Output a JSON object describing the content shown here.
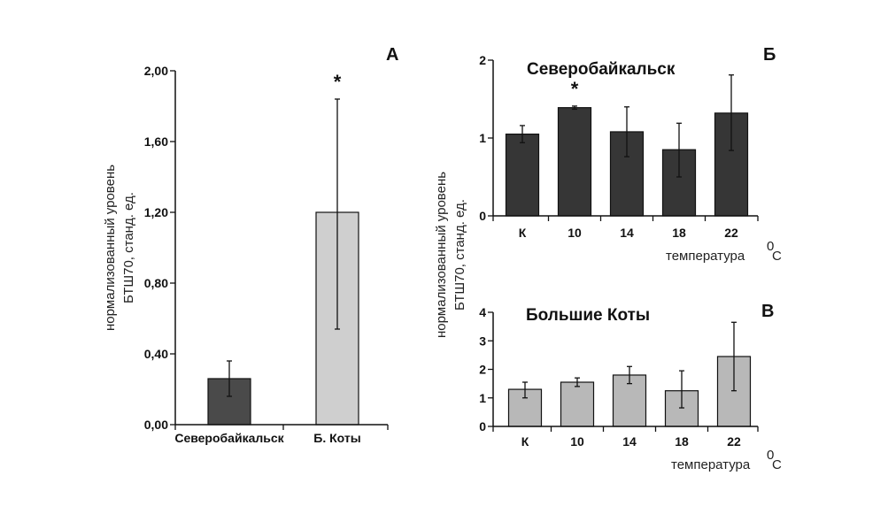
{
  "chart_data": [
    {
      "id": "A",
      "type": "bar",
      "panel_label": "А",
      "ylabel_line1": "нормализованный уровень",
      "ylabel_line2": "БТШ70, станд. ед.",
      "categories": [
        "Северобайкальск",
        "Б. Коты"
      ],
      "values": [
        0.26,
        1.2
      ],
      "errors_low": [
        0.16,
        0.54
      ],
      "errors_high": [
        0.36,
        1.84
      ],
      "significance": [
        "",
        "*"
      ],
      "colors": [
        "#4a4a4a",
        "#cfcfcf"
      ],
      "ylim": [
        0,
        2
      ],
      "yticks": [
        0,
        0.4,
        0.8,
        1.2,
        1.6,
        2.0
      ],
      "yticklabels": [
        "0,00",
        "0,40",
        "0,80",
        "1,20",
        "1,60",
        "2,00"
      ]
    },
    {
      "id": "B",
      "type": "bar",
      "panel_label": "Б",
      "title": "Северобайкальск",
      "xlabel": "температура",
      "xunit": "C",
      "xunit_sup": "0",
      "categories": [
        "К",
        "10",
        "14",
        "18",
        "22"
      ],
      "values": [
        1.05,
        1.39,
        1.08,
        0.85,
        1.32
      ],
      "errors_low": [
        0.94,
        1.37,
        0.76,
        0.5,
        0.84
      ],
      "errors_high": [
        1.16,
        1.41,
        1.4,
        1.19,
        1.81
      ],
      "significance": [
        "",
        "*",
        "",
        "",
        ""
      ],
      "color": "#363636",
      "ylim": [
        0,
        2
      ],
      "yticks": [
        0,
        1,
        2
      ],
      "yticklabels": [
        "0",
        "1",
        "2"
      ]
    },
    {
      "id": "C",
      "type": "bar",
      "panel_label": "В",
      "title": "Большие Коты",
      "xlabel": "температура",
      "xunit": "C",
      "xunit_sup": "0",
      "categories": [
        "К",
        "10",
        "14",
        "18",
        "22"
      ],
      "values": [
        1.3,
        1.55,
        1.8,
        1.25,
        2.45
      ],
      "errors_low": [
        1.0,
        1.4,
        1.5,
        0.65,
        1.25
      ],
      "errors_high": [
        1.55,
        1.7,
        2.1,
        1.95,
        3.65
      ],
      "significance": [
        "",
        "",
        "",
        "",
        ""
      ],
      "color": "#b8b8b8",
      "ylim": [
        0,
        4
      ],
      "yticks": [
        0,
        1,
        2,
        3,
        4
      ],
      "yticklabels": [
        "0",
        "1",
        "2",
        "3",
        "4"
      ]
    }
  ],
  "shared_ylabel_line1": "нормализованный уровень",
  "shared_ylabel_line2": "БТШ70, станд. ед."
}
